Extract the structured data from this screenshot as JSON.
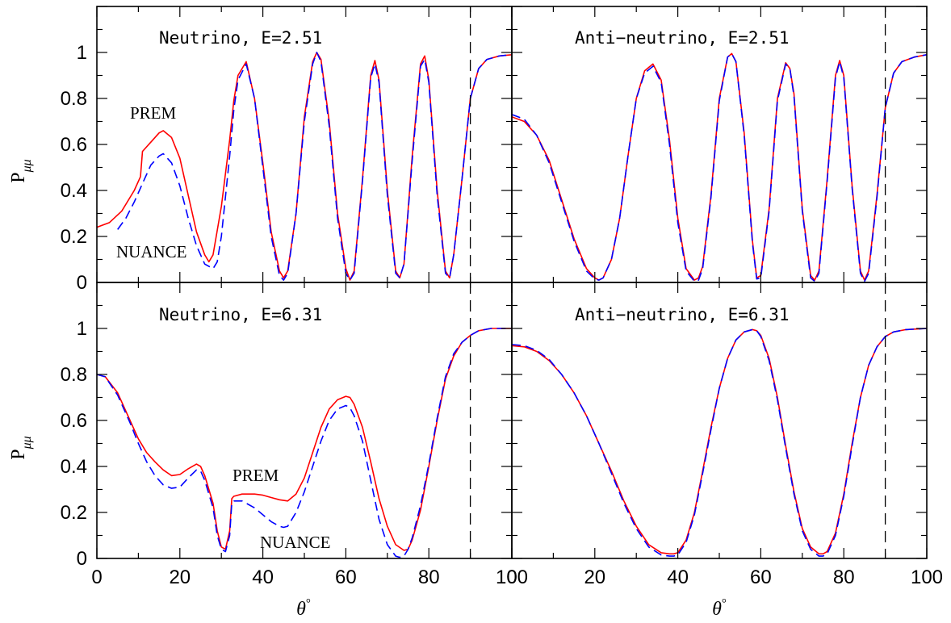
{
  "ylabel": "P",
  "ylabel_sub": "μμ",
  "xlabel": "θ",
  "xlabel_sup": "°",
  "chart_data": [
    {
      "type": "line",
      "title": "Neutrino, E=2.51",
      "xlim": [
        0,
        100
      ],
      "ylim": [
        0,
        1.2
      ],
      "xticks": [
        0,
        20,
        40,
        60,
        80,
        100
      ],
      "yticks": [
        0,
        0.2,
        0.4,
        0.6,
        0.8,
        1
      ],
      "vline": 90,
      "annotations": [
        "PREM",
        "NUANCE"
      ],
      "series": [
        {
          "name": "PREM",
          "color": "#ff0000",
          "dash": false,
          "x": [
            0,
            3,
            6,
            9,
            10.5,
            11,
            13,
            15,
            16,
            18,
            20,
            22,
            24,
            26,
            27,
            28,
            30,
            32,
            33,
            34,
            36,
            38,
            40,
            42,
            44,
            45,
            46,
            48,
            50,
            52,
            53,
            54,
            56,
            58,
            60,
            61,
            62,
            64,
            66,
            67,
            68,
            70,
            72,
            73,
            74,
            76,
            78,
            79,
            80,
            82,
            84,
            85,
            86,
            88,
            90,
            92,
            94,
            97,
            100
          ],
          "y": [
            0.24,
            0.26,
            0.31,
            0.4,
            0.46,
            0.57,
            0.61,
            0.65,
            0.66,
            0.63,
            0.54,
            0.38,
            0.22,
            0.12,
            0.09,
            0.12,
            0.33,
            0.62,
            0.79,
            0.9,
            0.96,
            0.8,
            0.52,
            0.22,
            0.05,
            0.02,
            0.05,
            0.3,
            0.72,
            0.96,
            1.0,
            0.97,
            0.7,
            0.3,
            0.06,
            0.01,
            0.05,
            0.45,
            0.9,
            0.965,
            0.88,
            0.4,
            0.05,
            0.02,
            0.08,
            0.55,
            0.95,
            0.985,
            0.88,
            0.4,
            0.05,
            0.02,
            0.12,
            0.45,
            0.8,
            0.93,
            0.97,
            0.985,
            0.99
          ]
        },
        {
          "name": "NUANCE",
          "color": "#0000ff",
          "dash": true,
          "x": [
            5,
            7,
            9,
            11,
            13,
            15,
            16,
            18,
            20,
            22,
            24,
            26,
            28,
            29,
            30,
            32,
            33,
            34,
            36,
            38,
            40,
            42,
            44,
            45,
            46,
            48,
            50,
            52,
            53,
            54,
            56,
            58,
            60,
            61,
            62,
            64,
            66,
            67,
            68,
            70,
            72,
            73,
            74,
            76,
            78,
            79,
            80,
            82,
            84,
            85,
            86,
            88,
            90,
            92,
            94,
            97,
            100
          ],
          "y": [
            0.23,
            0.28,
            0.35,
            0.43,
            0.51,
            0.55,
            0.56,
            0.52,
            0.42,
            0.28,
            0.16,
            0.08,
            0.06,
            0.09,
            0.2,
            0.55,
            0.75,
            0.88,
            0.95,
            0.8,
            0.5,
            0.2,
            0.03,
            0.01,
            0.04,
            0.3,
            0.7,
            0.95,
            1.0,
            0.96,
            0.68,
            0.28,
            0.04,
            0.01,
            0.04,
            0.44,
            0.89,
            0.95,
            0.87,
            0.38,
            0.04,
            0.02,
            0.08,
            0.53,
            0.94,
            0.97,
            0.87,
            0.38,
            0.04,
            0.02,
            0.12,
            0.45,
            0.8,
            0.93,
            0.97,
            0.985,
            0.99
          ]
        }
      ]
    },
    {
      "type": "line",
      "title": "Anti−neutrino, E=2.51",
      "xlim": [
        0,
        100
      ],
      "ylim": [
        0,
        1.2
      ],
      "xticks": [
        0,
        20,
        40,
        60,
        80,
        100
      ],
      "yticks": [
        0,
        0.2,
        0.4,
        0.6,
        0.8,
        1
      ],
      "vline": 90,
      "annotations": [],
      "series": [
        {
          "name": "PREM",
          "color": "#ff0000",
          "dash": false,
          "x": [
            0,
            3,
            6,
            9,
            12,
            15,
            18,
            20,
            21,
            22,
            24,
            26,
            28,
            30,
            32,
            34,
            36,
            38,
            40,
            42,
            44,
            45,
            46,
            48,
            50,
            52,
            53,
            54,
            56,
            58,
            59,
            60,
            62,
            64,
            66,
            67,
            68,
            70,
            72,
            73,
            74,
            76,
            78,
            79,
            80,
            82,
            84,
            85,
            86,
            88,
            90,
            92,
            94,
            97,
            100
          ],
          "y": [
            0.72,
            0.7,
            0.64,
            0.53,
            0.36,
            0.19,
            0.06,
            0.02,
            0.01,
            0.02,
            0.1,
            0.28,
            0.55,
            0.8,
            0.92,
            0.95,
            0.88,
            0.62,
            0.28,
            0.06,
            0.01,
            0.02,
            0.07,
            0.38,
            0.8,
            0.98,
            0.995,
            0.96,
            0.65,
            0.18,
            0.02,
            0.03,
            0.32,
            0.8,
            0.955,
            0.93,
            0.82,
            0.32,
            0.03,
            0.01,
            0.05,
            0.45,
            0.9,
            0.965,
            0.9,
            0.42,
            0.05,
            0.01,
            0.05,
            0.38,
            0.76,
            0.91,
            0.96,
            0.98,
            0.99
          ]
        },
        {
          "name": "NUANCE",
          "color": "#0000ff",
          "dash": true,
          "x": [
            0,
            3,
            6,
            9,
            12,
            15,
            18,
            20,
            21,
            22,
            24,
            26,
            28,
            30,
            32,
            34,
            36,
            38,
            40,
            42,
            44,
            45,
            46,
            48,
            50,
            52,
            53,
            54,
            56,
            58,
            59,
            60,
            62,
            64,
            66,
            67,
            68,
            70,
            72,
            73,
            74,
            76,
            78,
            79,
            80,
            82,
            84,
            85,
            86,
            88,
            90,
            92,
            94,
            97,
            100
          ],
          "y": [
            0.73,
            0.71,
            0.64,
            0.52,
            0.35,
            0.18,
            0.05,
            0.015,
            0.01,
            0.02,
            0.1,
            0.28,
            0.55,
            0.8,
            0.91,
            0.94,
            0.87,
            0.6,
            0.26,
            0.05,
            0.005,
            0.01,
            0.06,
            0.37,
            0.79,
            0.98,
            0.995,
            0.96,
            0.64,
            0.17,
            0.015,
            0.02,
            0.31,
            0.79,
            0.95,
            0.93,
            0.81,
            0.31,
            0.02,
            0.005,
            0.04,
            0.44,
            0.89,
            0.96,
            0.89,
            0.41,
            0.04,
            0.005,
            0.04,
            0.37,
            0.76,
            0.91,
            0.96,
            0.98,
            0.99
          ]
        }
      ]
    },
    {
      "type": "line",
      "title": "Neutrino, E=6.31",
      "xlim": [
        0,
        100
      ],
      "ylim": [
        0,
        1.2
      ],
      "xticks": [
        0,
        20,
        40,
        60,
        80,
        100
      ],
      "yticks": [
        0,
        0.2,
        0.4,
        0.6,
        0.8,
        1
      ],
      "vline": 90,
      "annotations": [
        "PREM",
        "NUANCE"
      ],
      "series": [
        {
          "name": "PREM",
          "color": "#ff0000",
          "dash": false,
          "x": [
            0,
            2,
            5,
            8,
            10,
            12,
            14,
            16,
            18,
            20,
            22,
            24,
            25,
            26,
            28,
            29,
            30,
            31,
            32,
            32.5,
            33,
            35,
            38,
            40,
            42,
            44,
            46,
            48,
            50,
            52,
            54,
            56,
            58,
            60,
            61,
            62,
            64,
            66,
            68,
            70,
            72,
            74,
            75,
            76,
            78,
            80,
            82,
            84,
            86,
            88,
            90,
            92,
            95,
            100
          ],
          "y": [
            0.8,
            0.79,
            0.72,
            0.6,
            0.52,
            0.46,
            0.42,
            0.385,
            0.36,
            0.365,
            0.39,
            0.41,
            0.4,
            0.36,
            0.24,
            0.12,
            0.05,
            0.04,
            0.12,
            0.26,
            0.27,
            0.28,
            0.28,
            0.275,
            0.265,
            0.255,
            0.25,
            0.28,
            0.35,
            0.46,
            0.57,
            0.65,
            0.69,
            0.705,
            0.7,
            0.67,
            0.57,
            0.42,
            0.26,
            0.14,
            0.06,
            0.035,
            0.04,
            0.08,
            0.21,
            0.4,
            0.6,
            0.78,
            0.88,
            0.94,
            0.97,
            0.99,
            1.0,
            1.0
          ]
        },
        {
          "name": "NUANCE",
          "color": "#0000ff",
          "dash": true,
          "x": [
            0,
            2,
            5,
            8,
            10,
            12,
            14,
            16,
            18,
            20,
            22,
            24,
            25,
            26,
            28,
            29,
            30,
            31,
            32,
            32.5,
            33,
            35,
            38,
            40,
            42,
            44,
            45,
            46,
            48,
            50,
            52,
            54,
            56,
            58,
            60,
            61,
            62,
            64,
            66,
            68,
            70,
            72,
            73,
            74,
            75,
            76,
            78,
            80,
            82,
            84,
            86,
            88,
            90,
            92,
            95,
            100
          ],
          "y": [
            0.8,
            0.79,
            0.71,
            0.59,
            0.5,
            0.42,
            0.36,
            0.32,
            0.305,
            0.31,
            0.35,
            0.385,
            0.38,
            0.34,
            0.22,
            0.1,
            0.04,
            0.03,
            0.1,
            0.24,
            0.25,
            0.25,
            0.22,
            0.19,
            0.16,
            0.14,
            0.135,
            0.14,
            0.2,
            0.29,
            0.4,
            0.51,
            0.6,
            0.65,
            0.665,
            0.655,
            0.62,
            0.51,
            0.34,
            0.17,
            0.06,
            0.01,
            0.005,
            0.01,
            0.04,
            0.09,
            0.23,
            0.41,
            0.61,
            0.79,
            0.89,
            0.94,
            0.97,
            0.99,
            1.0,
            1.0
          ]
        }
      ]
    },
    {
      "type": "line",
      "title": "Anti−neutrino, E=6.31",
      "xlim": [
        0,
        100
      ],
      "ylim": [
        0,
        1.2
      ],
      "xticks": [
        0,
        20,
        40,
        60,
        80,
        100
      ],
      "yticks": [
        0,
        0.2,
        0.4,
        0.6,
        0.8,
        1
      ],
      "vline": 90,
      "annotations": [],
      "series": [
        {
          "name": "PREM",
          "color": "#ff0000",
          "dash": false,
          "x": [
            0,
            3,
            6,
            9,
            12,
            15,
            18,
            21,
            24,
            27,
            30,
            33,
            36,
            38,
            39,
            40,
            42,
            44,
            46,
            48,
            50,
            52,
            54,
            56,
            58,
            59,
            60,
            62,
            64,
            66,
            68,
            70,
            72,
            74,
            75,
            76,
            78,
            80,
            82,
            84,
            86,
            88,
            90,
            92,
            95,
            100
          ],
          "y": [
            0.925,
            0.92,
            0.9,
            0.86,
            0.8,
            0.72,
            0.62,
            0.5,
            0.38,
            0.25,
            0.14,
            0.06,
            0.025,
            0.02,
            0.02,
            0.025,
            0.08,
            0.2,
            0.38,
            0.57,
            0.74,
            0.87,
            0.95,
            0.985,
            0.995,
            0.99,
            0.97,
            0.87,
            0.7,
            0.49,
            0.29,
            0.13,
            0.05,
            0.02,
            0.02,
            0.03,
            0.11,
            0.28,
            0.5,
            0.7,
            0.84,
            0.92,
            0.965,
            0.985,
            0.995,
            1.0
          ]
        },
        {
          "name": "NUANCE",
          "color": "#0000ff",
          "dash": true,
          "x": [
            0,
            3,
            6,
            9,
            12,
            15,
            18,
            21,
            24,
            27,
            30,
            33,
            36,
            38,
            39,
            40,
            42,
            44,
            46,
            48,
            50,
            52,
            54,
            56,
            58,
            59,
            60,
            62,
            64,
            66,
            68,
            70,
            72,
            74,
            75,
            76,
            78,
            80,
            82,
            84,
            86,
            88,
            90,
            92,
            95,
            100
          ],
          "y": [
            0.93,
            0.925,
            0.905,
            0.865,
            0.8,
            0.72,
            0.62,
            0.5,
            0.37,
            0.24,
            0.13,
            0.05,
            0.015,
            0.01,
            0.01,
            0.015,
            0.07,
            0.19,
            0.37,
            0.56,
            0.74,
            0.87,
            0.95,
            0.985,
            0.995,
            0.99,
            0.965,
            0.86,
            0.69,
            0.48,
            0.28,
            0.12,
            0.04,
            0.01,
            0.01,
            0.02,
            0.1,
            0.27,
            0.49,
            0.7,
            0.84,
            0.92,
            0.965,
            0.985,
            0.995,
            1.0
          ]
        }
      ]
    }
  ]
}
